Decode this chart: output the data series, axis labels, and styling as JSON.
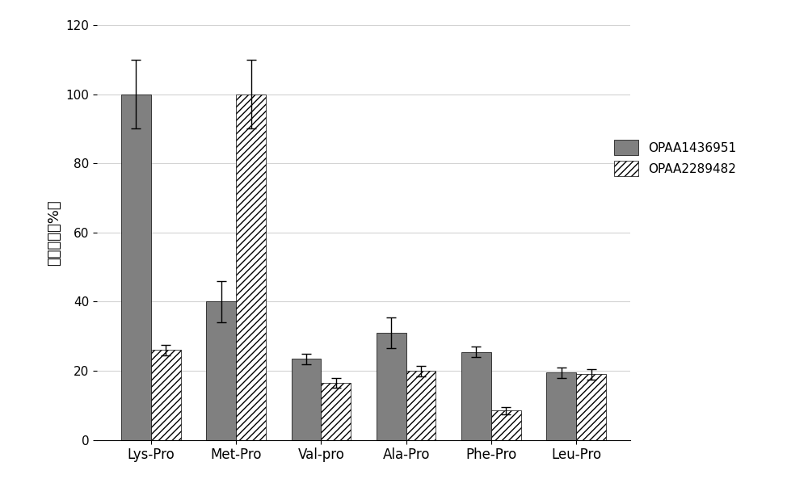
{
  "categories": [
    "Lys-Pro",
    "Met-Pro",
    "Val-pro",
    "Ala-Pro",
    "Phe-Pro",
    "Leu-Pro"
  ],
  "opaa1_values": [
    100,
    40,
    23.5,
    31,
    25.5,
    19.5
  ],
  "opaa2_values": [
    26,
    100,
    16.5,
    20,
    8.5,
    19
  ],
  "opaa1_errors": [
    10,
    6,
    1.5,
    4.5,
    1.5,
    1.5
  ],
  "opaa2_errors": [
    1.5,
    10,
    1.5,
    1.5,
    1,
    1.5
  ],
  "opaa1_color": "#808080",
  "opaa2_color": "#b8b8b8",
  "ylabel": "相对酶活（%）",
  "ylim": [
    0,
    120
  ],
  "yticks": [
    0,
    20,
    40,
    60,
    80,
    100,
    120
  ],
  "legend_label1": "OPAA1436951",
  "legend_label2": "OPAA2289482",
  "bar_width": 0.35,
  "figsize": [
    10.0,
    6.19
  ],
  "dpi": 100
}
